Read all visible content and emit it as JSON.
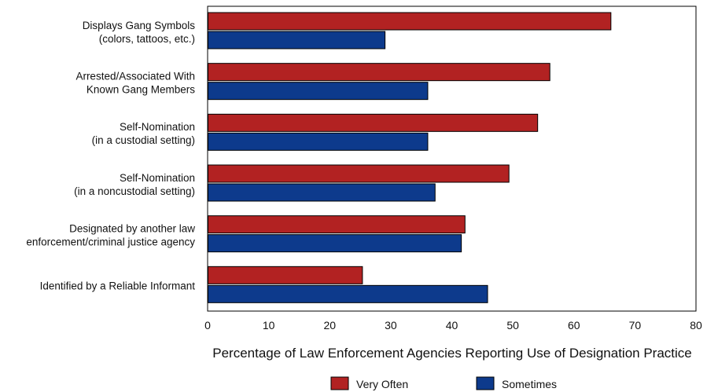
{
  "chart_data": {
    "type": "bar",
    "orientation": "horizontal",
    "categories": [
      [
        "Displays Gang Symbols",
        "(colors, tattoos, etc.)"
      ],
      [
        "Arrested/Associated With",
        "Known Gang Members"
      ],
      [
        "Self-Nomination",
        "(in a custodial setting)"
      ],
      [
        "Self-Nomination",
        "(in a noncustodial setting)"
      ],
      [
        "Designated by another law",
        "enforcement/criminal justice agency"
      ],
      [
        "Identified by a Reliable Informant"
      ]
    ],
    "series": [
      {
        "name": "Very Often",
        "color": "#b22222",
        "values": [
          66,
          56,
          54,
          49.3,
          42.1,
          25.3
        ]
      },
      {
        "name": "Sometimes",
        "color": "#0d3a8c",
        "values": [
          29,
          36,
          36,
          37.2,
          41.5,
          45.8
        ]
      }
    ],
    "xlabel": "Percentage of Law Enforcement Agencies Reporting Use of Designation Practice",
    "xlim": [
      0,
      80
    ],
    "xticks": [
      0,
      10,
      20,
      30,
      40,
      50,
      60,
      70,
      80
    ],
    "grid": false,
    "legend_position": "bottom"
  }
}
